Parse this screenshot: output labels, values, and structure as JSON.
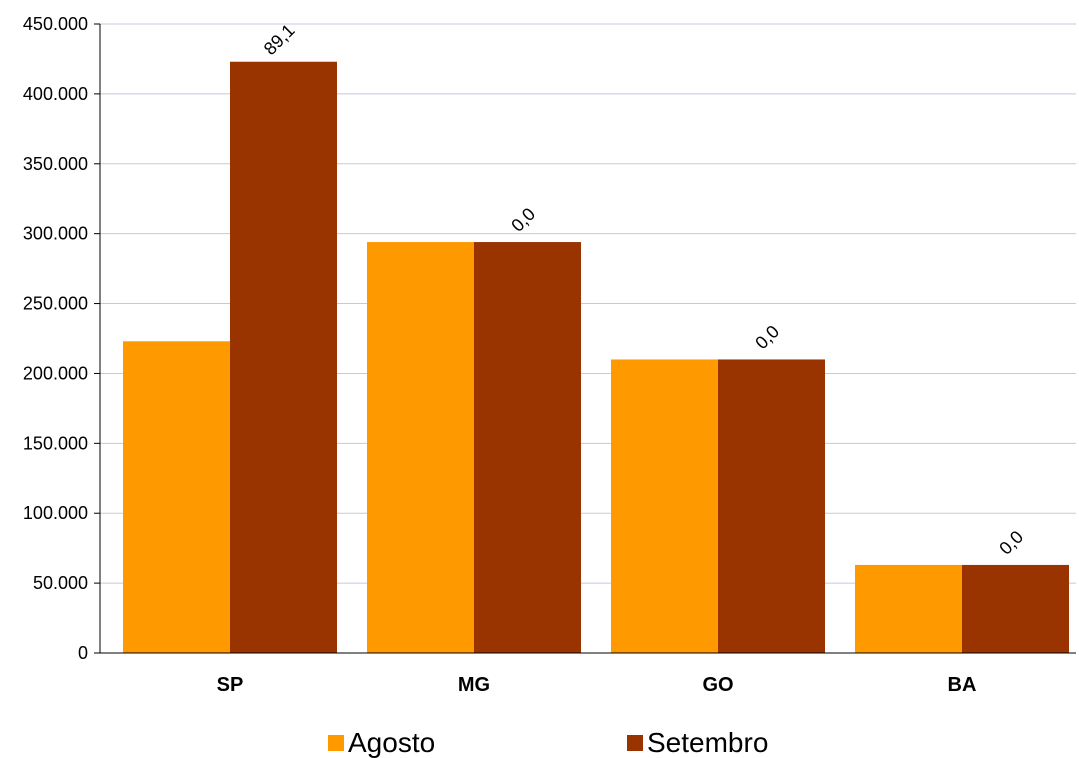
{
  "chart_data": {
    "type": "bar",
    "categories": [
      "SP",
      "MG",
      "GO",
      "BA"
    ],
    "series": [
      {
        "name": "Agosto",
        "color": "#FF9900",
        "values": [
          223000,
          294000,
          210000,
          63000
        ]
      },
      {
        "name": "Setembro",
        "color": "#993300",
        "values": [
          423000,
          294000,
          210000,
          63000
        ]
      }
    ],
    "data_labels": [
      "89,1",
      "0,0",
      "0,0",
      "0,0"
    ],
    "ylim": [
      0,
      450000
    ],
    "yticks": [
      0,
      50000,
      100000,
      150000,
      200000,
      250000,
      300000,
      350000,
      400000,
      450000
    ],
    "ytick_labels": [
      "0",
      "50.000",
      "100.000",
      "150.000",
      "200.000",
      "250.000",
      "300.000",
      "350.000",
      "400.000",
      "450.000"
    ],
    "grid": true,
    "legend_position": "bottom",
    "xlabel": "",
    "ylabel": "",
    "title": ""
  }
}
